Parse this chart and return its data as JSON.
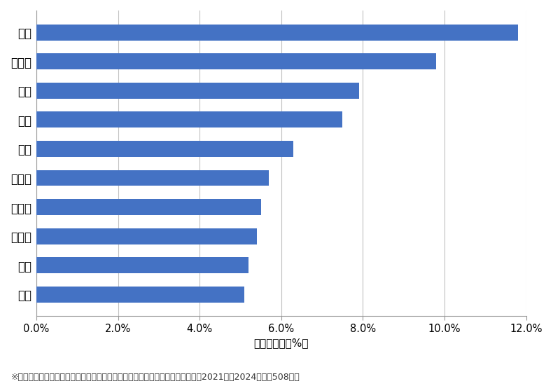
{
  "categories": [
    "鷺宮",
    "南台",
    "上高田",
    "江古田",
    "弥生町",
    "野方",
    "中央",
    "本町",
    "東中野",
    "中野"
  ],
  "values": [
    5.1,
    5.2,
    5.4,
    5.5,
    5.7,
    6.3,
    7.5,
    7.9,
    9.8,
    11.8
  ],
  "bar_color": "#4472c4",
  "xlabel": "件数の割合（%）",
  "xlim": [
    0,
    12.0
  ],
  "xticks": [
    0,
    2.0,
    4.0,
    6.0,
    8.0,
    10.0,
    12.0
  ],
  "xtick_labels": [
    "0.0%",
    "2.0%",
    "4.0%",
    "6.0%",
    "8.0%",
    "10.0%",
    "12.0%"
  ],
  "footnote": "※弊社受付の案件を対象に、受付時に市区町村の回答があったものを集計（期間2021年～2024年、計508件）",
  "background_color": "#ffffff",
  "bar_height": 0.55,
  "grid_color": "#c0c0c0",
  "xlabel_fontsize": 11,
  "tick_fontsize": 10.5,
  "category_fontsize": 12,
  "footnote_fontsize": 9
}
